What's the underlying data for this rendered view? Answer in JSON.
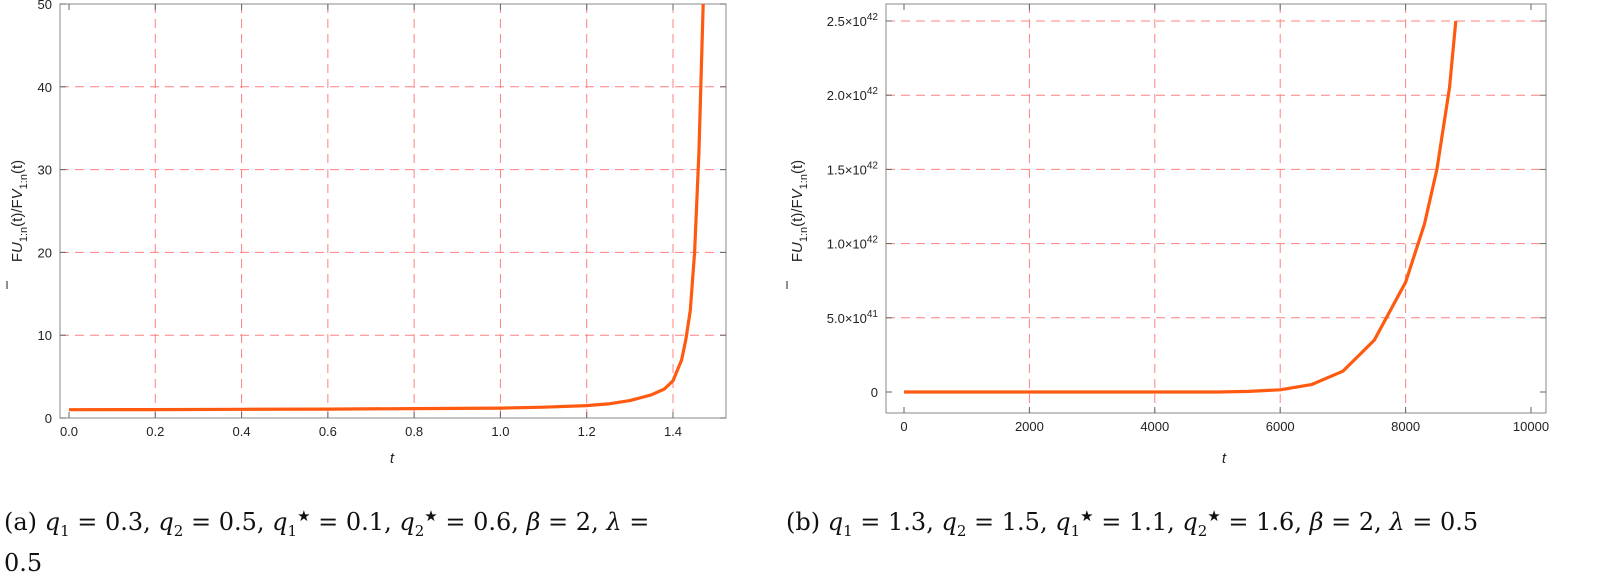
{
  "chart_data": [
    {
      "type": "line",
      "xlabel": "t",
      "ylabel_main": "F",
      "ylabel_sub1": "U",
      "ylabel_sub1_idx": "1:n",
      "ylabel_mid": "(t)/",
      "ylabel_sub2": "V",
      "ylabel_sub2_idx": "1:n",
      "ylabel_end": "(t)",
      "xlim": [
        0,
        1.5
      ],
      "ylim": [
        0,
        50
      ],
      "xticks": [
        "0.0",
        "0.2",
        "0.4",
        "0.6",
        "0.8",
        "1.0",
        "1.2",
        "1.4"
      ],
      "xtick_values": [
        0,
        0.2,
        0.4,
        0.6,
        0.8,
        1.0,
        1.2,
        1.4
      ],
      "yticks": [
        "0",
        "10",
        "20",
        "30",
        "40",
        "50"
      ],
      "ytick_values": [
        0,
        10,
        20,
        30,
        40,
        50
      ],
      "grid": true,
      "line_color": "#ff5a10",
      "grid_color": "#ff8080",
      "series": [
        {
          "x": [
            0,
            0.2,
            0.4,
            0.6,
            0.8,
            1.0,
            1.1,
            1.2,
            1.25,
            1.3,
            1.35,
            1.38,
            1.4,
            1.42,
            1.43,
            1.44,
            1.45,
            1.46,
            1.47
          ],
          "y": [
            1.0,
            1.02,
            1.05,
            1.08,
            1.13,
            1.2,
            1.3,
            1.5,
            1.7,
            2.1,
            2.8,
            3.5,
            4.5,
            7,
            9.5,
            13,
            20,
            32,
            50
          ]
        }
      ],
      "caption": {
        "tag": "(a)",
        "q1": "0.3",
        "q2": "0.5",
        "q1s": "0.1",
        "q2s": "0.6",
        "beta": "2",
        "lambda_line1": "=",
        "lambda_line2": "0.5"
      }
    },
    {
      "type": "line",
      "xlabel": "t",
      "ylabel_main": "F",
      "ylabel_sub1": "U",
      "ylabel_sub1_idx": "1:n",
      "ylabel_mid": "(t)/",
      "ylabel_sub2": "V",
      "ylabel_sub2_idx": "1:n",
      "ylabel_end": "(t)",
      "xlim": [
        0,
        10000
      ],
      "ylim": [
        0,
        2.5e+42
      ],
      "xticks": [
        "0",
        "2000",
        "4000",
        "6000",
        "8000",
        "10000"
      ],
      "xtick_values": [
        0,
        2000,
        4000,
        6000,
        8000,
        10000
      ],
      "yticks": [
        "0",
        "5.0×10",
        "1.0×10",
        "1.5×10",
        "2.0×10",
        "2.5×10"
      ],
      "ytick_exps": [
        "",
        "41",
        "42",
        "42",
        "42",
        "42"
      ],
      "ytick_values": [
        0,
        5e+41,
        1e+42,
        1.5e+42,
        2e+42,
        2.5e+42
      ],
      "grid": true,
      "line_color": "#ff5a10",
      "grid_color": "#ff8080",
      "series": [
        {
          "x": [
            0,
            2000,
            4000,
            5000,
            5500,
            6000,
            6500,
            7000,
            7500,
            8000,
            8300,
            8500,
            8700,
            8800
          ],
          "y": [
            0,
            0,
            0,
            0,
            4e+39,
            1.5e+40,
            5e+40,
            1.4e+41,
            3.5e+41,
            7.4e+41,
            1.13e+42,
            1.5e+42,
            2.05e+42,
            2.5e+42
          ]
        }
      ],
      "caption": {
        "tag": "(b)",
        "q1": "1.3",
        "q2": "1.5",
        "q1s": "1.1",
        "q2s": "1.6",
        "beta": "2",
        "lambda": "0.5"
      }
    }
  ]
}
